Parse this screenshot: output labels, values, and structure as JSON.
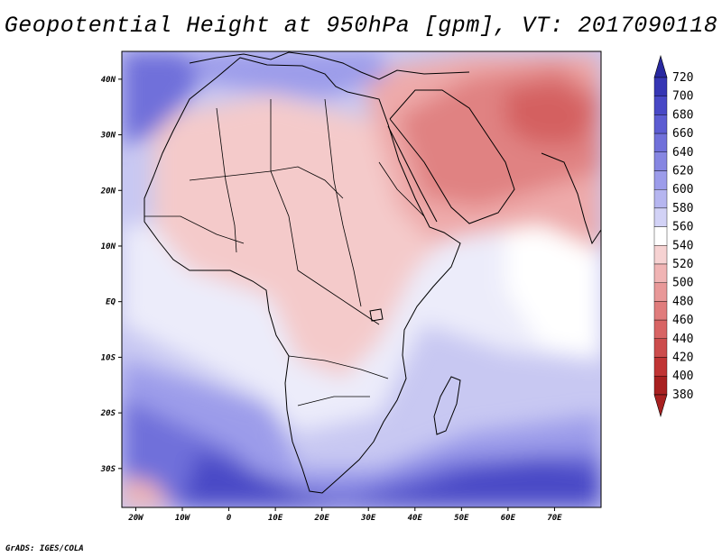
{
  "title": "Geopotential Height at 950hPa [gpm], VT: 2017090118",
  "credit": "GrADS: IGES/COLA",
  "map": {
    "lon_range": [
      -23,
      80
    ],
    "lat_range": [
      -37,
      45
    ],
    "xticks": [
      {
        "value": -20,
        "label": "20W"
      },
      {
        "value": -10,
        "label": "10W"
      },
      {
        "value": 0,
        "label": "0"
      },
      {
        "value": 10,
        "label": "10E"
      },
      {
        "value": 20,
        "label": "20E"
      },
      {
        "value": 30,
        "label": "30E"
      },
      {
        "value": 40,
        "label": "40E"
      },
      {
        "value": 50,
        "label": "50E"
      },
      {
        "value": 60,
        "label": "60E"
      },
      {
        "value": 70,
        "label": "70E"
      }
    ],
    "yticks": [
      {
        "value": 40,
        "label": "40N"
      },
      {
        "value": 30,
        "label": "30N"
      },
      {
        "value": 20,
        "label": "20N"
      },
      {
        "value": 10,
        "label": "10N"
      },
      {
        "value": 0,
        "label": "EQ"
      },
      {
        "value": -10,
        "label": "10S"
      },
      {
        "value": -20,
        "label": "20S"
      },
      {
        "value": -30,
        "label": "30S"
      }
    ]
  },
  "colorbar": {
    "levels": [
      720,
      700,
      680,
      660,
      640,
      620,
      600,
      580,
      560,
      540,
      520,
      500,
      480,
      460,
      440,
      420,
      400,
      380
    ],
    "colors": [
      "#2828a0",
      "#3636b4",
      "#4848c6",
      "#5c5cd2",
      "#7070da",
      "#8686e2",
      "#9c9cea",
      "#b6b6f0",
      "#d2d2f6",
      "#ffffff",
      "#f6d2d2",
      "#f0b4b4",
      "#e89898",
      "#e07c7c",
      "#d86464",
      "#cc4c4c",
      "#c03434",
      "#a82020"
    ]
  },
  "colors": {
    "ocean_mid": "#d2d2f6",
    "ocean_deep": "#5c5cd2",
    "land_warm": "#f6d2d2",
    "land_hot": "#e07c7c",
    "coast": "#000000"
  }
}
